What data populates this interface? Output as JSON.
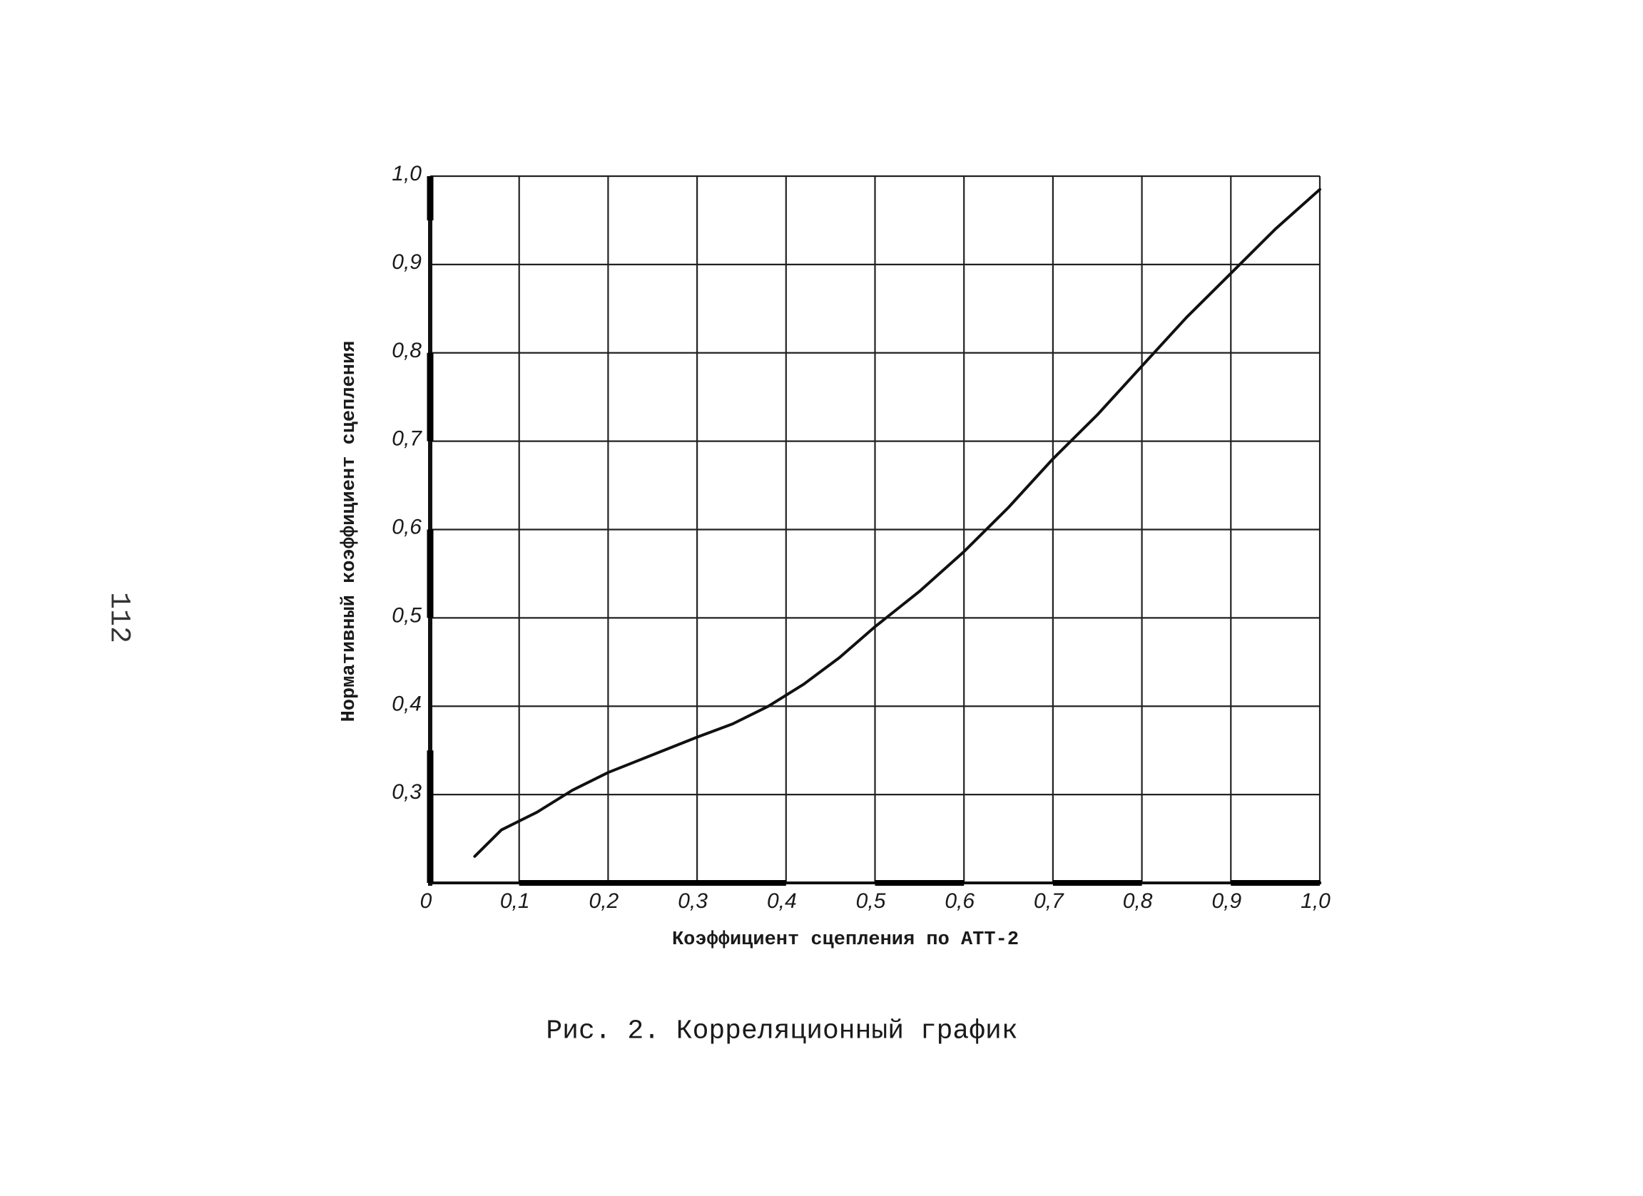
{
  "page": {
    "number": "112"
  },
  "caption": "Рис. 2. Корреляционный график",
  "chart_data": {
    "type": "line",
    "title": "",
    "xlabel": "Коэффициент сцепления по АТТ-2",
    "ylabel": "Нормативный коэффициент сцепления",
    "xlim": [
      0,
      1.0
    ],
    "ylim": [
      0.2,
      1.0
    ],
    "x_ticks": [
      "0",
      "0,1",
      "0,2",
      "0,3",
      "0,4",
      "0,5",
      "0,6",
      "0,7",
      "0,8",
      "0,9",
      "1,0"
    ],
    "y_ticks": [
      "0,3",
      "0,4",
      "0,5",
      "0,6",
      "0,7",
      "0,8",
      "0,9",
      "1,0"
    ],
    "grid": true,
    "series": [
      {
        "color": "#111111",
        "x": [
          0.05,
          0.08,
          0.12,
          0.16,
          0.2,
          0.25,
          0.3,
          0.34,
          0.38,
          0.42,
          0.46,
          0.5,
          0.55,
          0.6,
          0.65,
          0.7,
          0.75,
          0.8,
          0.85,
          0.9,
          0.95,
          1.0
        ],
        "y": [
          0.23,
          0.26,
          0.28,
          0.305,
          0.325,
          0.345,
          0.365,
          0.38,
          0.4,
          0.425,
          0.455,
          0.49,
          0.53,
          0.575,
          0.625,
          0.68,
          0.73,
          0.785,
          0.84,
          0.89,
          0.94,
          0.985
        ]
      }
    ]
  }
}
